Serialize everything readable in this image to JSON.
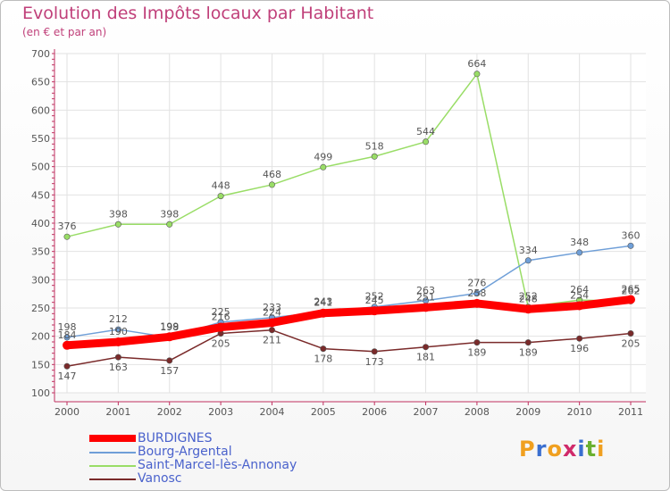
{
  "chart_data": {
    "type": "line",
    "title": "Evolution des Impôts locaux par Habitant",
    "subtitle": "(en € et par an)",
    "x": [
      "2000",
      "2001",
      "2002",
      "2003",
      "2004",
      "2005",
      "2006",
      "2007",
      "2008",
      "2009",
      "2010",
      "2011"
    ],
    "ylim": [
      100,
      700
    ],
    "yticks": [
      100,
      150,
      200,
      250,
      300,
      350,
      400,
      450,
      500,
      550,
      600,
      650,
      700
    ],
    "series": [
      {
        "name": "BURDIGNES",
        "color": "#ff0000",
        "values": [
          184,
          190,
          199,
          216,
          224,
          241,
          245,
          251,
          258,
          248,
          254,
          265
        ]
      },
      {
        "name": "Bourg-Argental",
        "color": "#6f9fd8",
        "values": [
          198,
          212,
          198,
          225,
          233,
          243,
          252,
          263,
          276,
          334,
          348,
          360
        ]
      },
      {
        "name": "Saint-Marcel-lès-Annonay",
        "color": "#99dd66",
        "values": [
          376,
          398,
          398,
          448,
          468,
          499,
          518,
          544,
          664,
          252,
          264,
          262
        ]
      },
      {
        "name": "Vanosc",
        "color": "#7a2a2a",
        "values": [
          147,
          163,
          157,
          205,
          211,
          178,
          173,
          181,
          189,
          189,
          196,
          205
        ]
      }
    ]
  },
  "logo": {
    "letters": [
      "P",
      "r",
      "o",
      "x",
      "i",
      "t",
      "i"
    ],
    "colors": [
      "#f0a020",
      "#3a6fd0",
      "#f0a020",
      "#d02a6a",
      "#3a6fd0",
      "#6ab030",
      "#f0a020"
    ]
  }
}
